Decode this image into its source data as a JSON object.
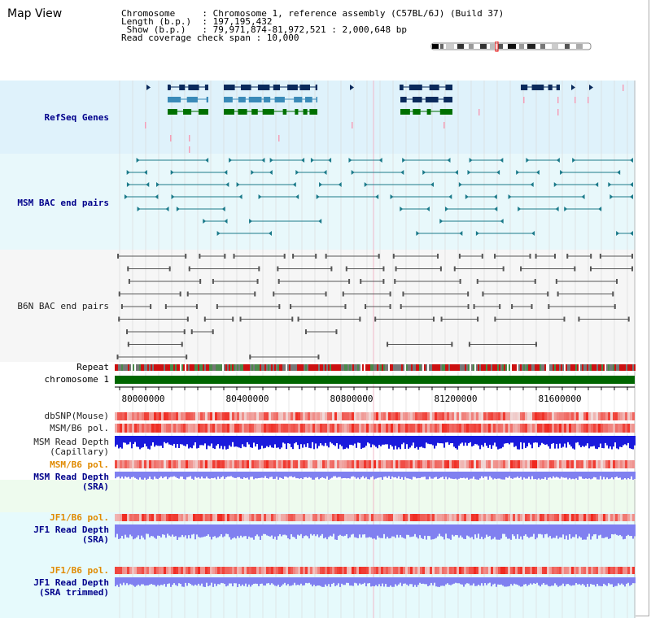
{
  "header": {
    "title": "Map View"
  },
  "info": {
    "rows": [
      {
        "key": "Chromosome    ",
        "value": "Chromosome 1, reference assembly (C57BL/6J) (Build 37)"
      },
      {
        "key": "Length (b.p.) ",
        "value": "197,195,432"
      },
      {
        "key": " Show (b.p.)  ",
        "value": "79,971,874-81,972,521 : 2,000,648 bp"
      }
    ],
    "coverage": "Read coverage check span : 10,000"
  },
  "tracks": {
    "refseq": "RefSeq Genes",
    "msm_bac": "MSM BAC end pairs",
    "b6n_bac": "B6N BAC end pairs",
    "repeat": "Repeat",
    "chrom": "chromosome 1",
    "dbsnp": "dbSNP(Mouse)",
    "msm_pol": "MSM/B6 pol.",
    "msm_depth_cap_1": "MSM Read Depth",
    "msm_depth_cap_2": "(Capillary)",
    "msm_pol_2": "MSM/B6 pol.",
    "msm_depth_sra_1": "MSM Read Depth",
    "msm_depth_sra_2": "(SRA)",
    "jf1_pol": "JF1/B6 pol.",
    "jf1_depth_sra_1": "JF1 Read Depth",
    "jf1_depth_sra_2": "(SRA)",
    "jf1_pol_2": "JF1/B6 pol.",
    "jf1_depth_trim_1": "JF1 Read Depth",
    "jf1_depth_trim_2": "(SRA trimmed)"
  },
  "axis": {
    "ticks": [
      "80000000",
      "80400000",
      "80800000",
      "81200000",
      "81600000"
    ]
  },
  "colors": {
    "refseq_bg": "#dff2fb",
    "bac_bg": "#e8f8fb",
    "gene_dark": "#0a2a5c",
    "gene_mid": "#3a8ab8",
    "gene_green": "#007000",
    "msm_bac": "#1b7a8a",
    "b6n_bac": "#555555",
    "chrom_green": "#006600",
    "depth_blue": "#1a1adc",
    "depth_sra": "#8080f0",
    "pol_red": "#e8202a"
  }
}
